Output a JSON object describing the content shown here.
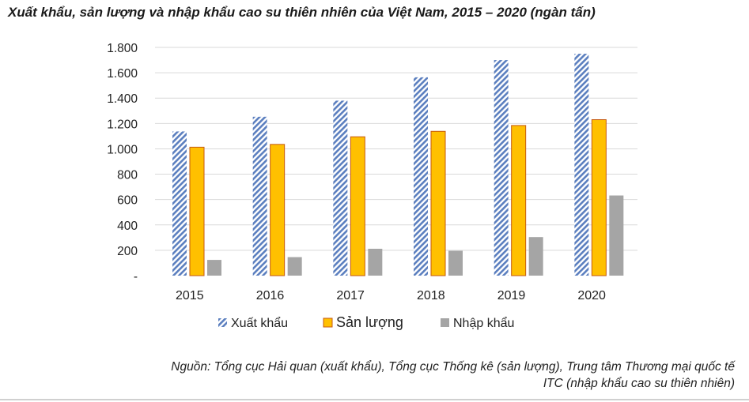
{
  "title": "Xuất khẩu, sản lượng và nhập khẩu cao su thiên nhiên của Việt Nam, 2015 – 2020 (ngàn tấn)",
  "source_line1": "Nguồn: Tổng cục Hải quan (xuất khẩu), Tổng cục Thống kê (sản lượng), Trung tâm Thương mại quốc tế",
  "source_line2": "ITC (nhập khẩu cao su thiên nhiên)",
  "colors": {
    "xuat_khau": "#5b7fbf",
    "san_luong": "#ffc000",
    "san_luong_border": "#c55a11",
    "nhap_khau": "#a5a5a5",
    "grid": "#d9d9d9"
  },
  "chart_data": {
    "type": "bar",
    "categories": [
      "2015",
      "2016",
      "2017",
      "2018",
      "2019",
      "2020"
    ],
    "series": [
      {
        "name": "Xuất khẩu",
        "values": [
          1137,
          1253,
          1380,
          1564,
          1700,
          1750
        ]
      },
      {
        "name": "Sản lượng",
        "values": [
          1013,
          1035,
          1095,
          1138,
          1184,
          1230
        ]
      },
      {
        "name": "Nhập khẩu",
        "values": [
          124,
          146,
          212,
          196,
          304,
          632
        ]
      }
    ],
    "ylim": [
      0,
      1800
    ],
    "yticks": [
      0,
      200,
      400,
      600,
      800,
      1000,
      1200,
      1400,
      1600,
      1800
    ],
    "ytick_labels": [
      "-",
      "200",
      "400",
      "600",
      "800",
      "1.000",
      "1.200",
      "1.400",
      "1.600",
      "1.800"
    ],
    "grid": true,
    "legend_position": "bottom"
  }
}
